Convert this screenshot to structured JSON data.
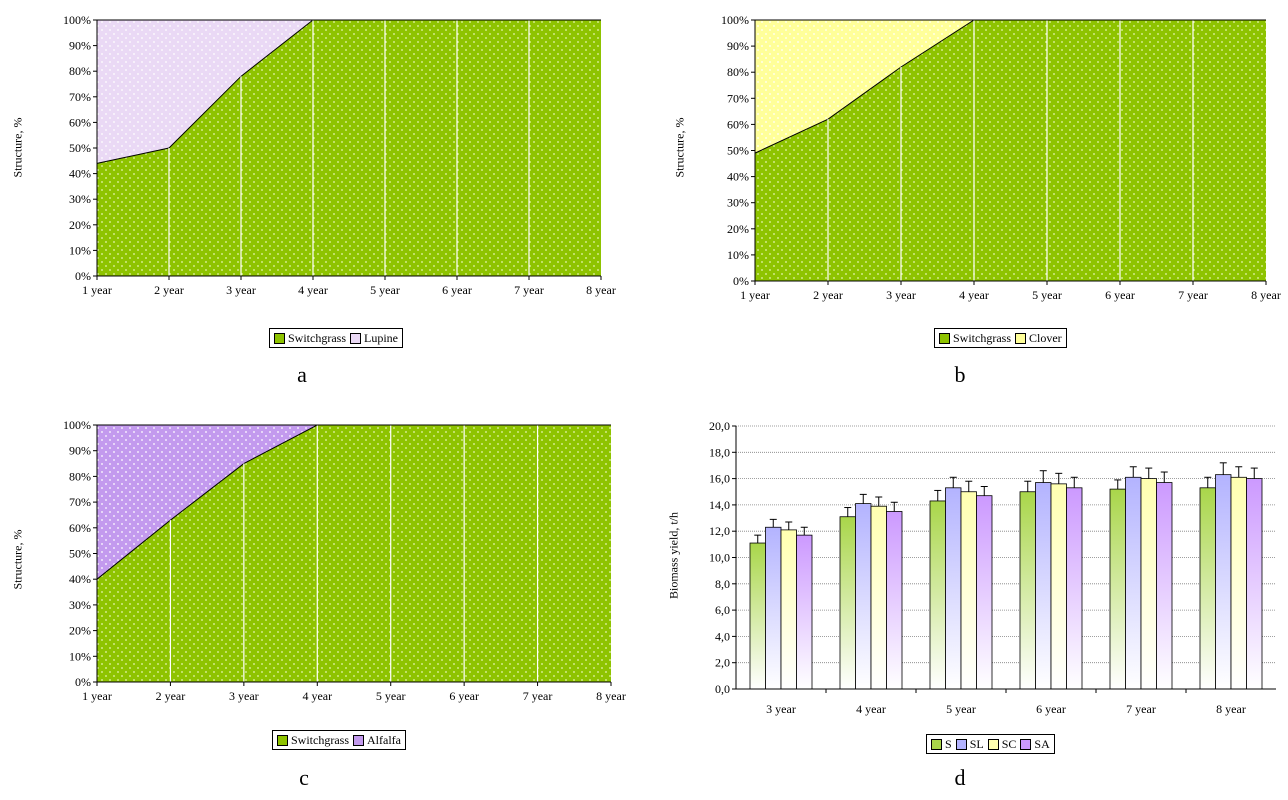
{
  "colors": {
    "switchgrass": "#8ec300",
    "lupine": "#ead9f5",
    "clover": "#ffff99",
    "alfalfa": "#c39aee",
    "S": "#a9d64a",
    "SL": "#b3b3ff",
    "SC": "#ffffb0",
    "SA": "#cc99ff"
  },
  "panel_labels": [
    "a",
    "b",
    "c",
    "d"
  ],
  "chart_data": [
    {
      "type": "area",
      "panel": "a",
      "ylabel": "Structure, %",
      "categories": [
        "1 year",
        "2 year",
        "3 year",
        "4 year",
        "5 year",
        "6 year",
        "7 year",
        "8 year"
      ],
      "yticks": [
        "0%",
        "10%",
        "20%",
        "30%",
        "40%",
        "50%",
        "60%",
        "70%",
        "80%",
        "90%",
        "100%"
      ],
      "ylim": [
        0,
        100
      ],
      "stacked": true,
      "series": [
        {
          "name": "Switchgrass",
          "values": [
            44,
            50,
            78,
            100,
            100,
            100,
            100,
            100
          ]
        },
        {
          "name": "Lupine",
          "values": [
            56,
            50,
            22,
            0,
            0,
            0,
            0,
            0
          ]
        }
      ],
      "legend": [
        "Switchgrass",
        "Lupine"
      ],
      "legend_position": "bottom"
    },
    {
      "type": "area",
      "panel": "b",
      "ylabel": "Structure, %",
      "categories": [
        "1 year",
        "2 year",
        "3 year",
        "4 year",
        "5 year",
        "6 year",
        "7 year",
        "8 year"
      ],
      "yticks": [
        "0%",
        "10%",
        "20%",
        "30%",
        "40%",
        "50%",
        "60%",
        "70%",
        "80%",
        "90%",
        "100%"
      ],
      "ylim": [
        0,
        100
      ],
      "stacked": true,
      "series": [
        {
          "name": "Switchgrass",
          "values": [
            49,
            62,
            82,
            100,
            100,
            100,
            100,
            100
          ]
        },
        {
          "name": "Clover",
          "values": [
            51,
            38,
            18,
            0,
            0,
            0,
            0,
            0
          ]
        }
      ],
      "legend": [
        "Switchgrass",
        "Clover"
      ],
      "legend_position": "bottom"
    },
    {
      "type": "area",
      "panel": "c",
      "ylabel": "Structure, %",
      "categories": [
        "1 year",
        "2 year",
        "3 year",
        "4 year",
        "5 year",
        "6 year",
        "7 year",
        "8 year"
      ],
      "yticks": [
        "0%",
        "10%",
        "20%",
        "30%",
        "40%",
        "50%",
        "60%",
        "70%",
        "80%",
        "90%",
        "100%"
      ],
      "ylim": [
        0,
        100
      ],
      "stacked": true,
      "series": [
        {
          "name": "Switchgrass",
          "values": [
            40,
            63,
            85,
            100,
            100,
            100,
            100,
            100
          ]
        },
        {
          "name": "Alfalfa",
          "values": [
            60,
            37,
            15,
            0,
            0,
            0,
            0,
            0
          ]
        }
      ],
      "legend": [
        "Switchgrass",
        "Alfalfa"
      ],
      "legend_position": "bottom"
    },
    {
      "type": "bar",
      "panel": "d",
      "ylabel": "Biomass yield, t/h",
      "categories": [
        "3 year",
        "4 year",
        "5 year",
        "6 year",
        "7 year",
        "8 year"
      ],
      "yticks": [
        "0,0",
        "2,0",
        "4,0",
        "6,0",
        "8,0",
        "10,0",
        "12,0",
        "14,0",
        "16,0",
        "18,0",
        "20,0"
      ],
      "ylim": [
        0,
        20
      ],
      "grid": true,
      "series": [
        {
          "name": "S",
          "values": [
            11.1,
            13.1,
            14.3,
            15.0,
            15.2,
            15.3
          ],
          "errors": [
            0.6,
            0.7,
            0.8,
            0.8,
            0.7,
            0.8
          ]
        },
        {
          "name": "SL",
          "values": [
            12.3,
            14.1,
            15.3,
            15.7,
            16.1,
            16.3
          ],
          "errors": [
            0.6,
            0.7,
            0.8,
            0.9,
            0.8,
            0.9
          ]
        },
        {
          "name": "SC",
          "values": [
            12.1,
            13.9,
            15.0,
            15.6,
            16.0,
            16.1
          ],
          "errors": [
            0.6,
            0.7,
            0.8,
            0.8,
            0.8,
            0.8
          ]
        },
        {
          "name": "SA",
          "values": [
            11.7,
            13.5,
            14.7,
            15.3,
            15.7,
            16.0
          ],
          "errors": [
            0.6,
            0.7,
            0.7,
            0.8,
            0.8,
            0.8
          ]
        }
      ],
      "legend": [
        "S",
        "SL",
        "SC",
        "SA"
      ],
      "legend_position": "bottom"
    }
  ]
}
